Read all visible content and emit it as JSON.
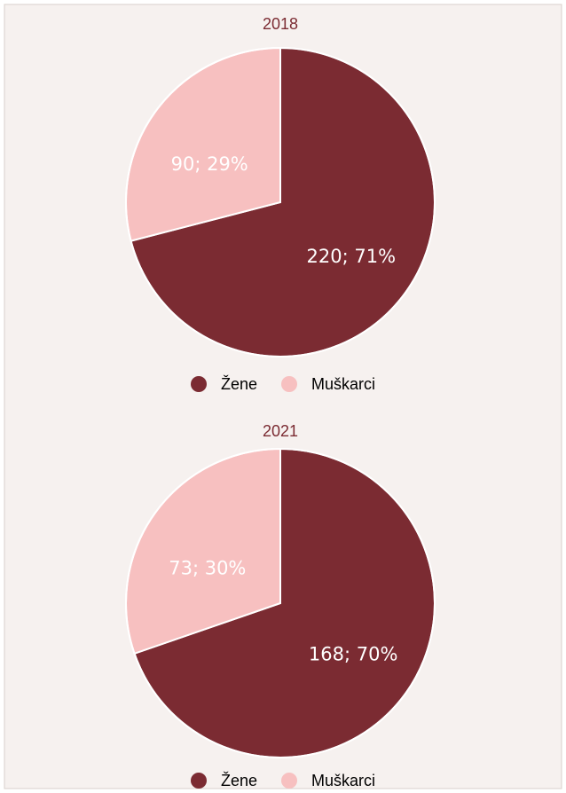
{
  "chart_data": [
    {
      "type": "pie",
      "title": "2018",
      "categories": [
        "Žene",
        "Muškarci"
      ],
      "values": [
        220,
        90
      ],
      "value_labels": [
        "220; 71%",
        "90; 29%"
      ],
      "colors": [
        "#7b2b32",
        "#f7c0c0"
      ],
      "legend": "bottom"
    },
    {
      "type": "pie",
      "title": "2021",
      "categories": [
        "Žene",
        "Muškarci"
      ],
      "values": [
        168,
        73
      ],
      "value_labels": [
        "168; 70%",
        "73; 30%"
      ],
      "colors": [
        "#7b2b32",
        "#f7c0c0"
      ],
      "legend": "bottom"
    }
  ]
}
